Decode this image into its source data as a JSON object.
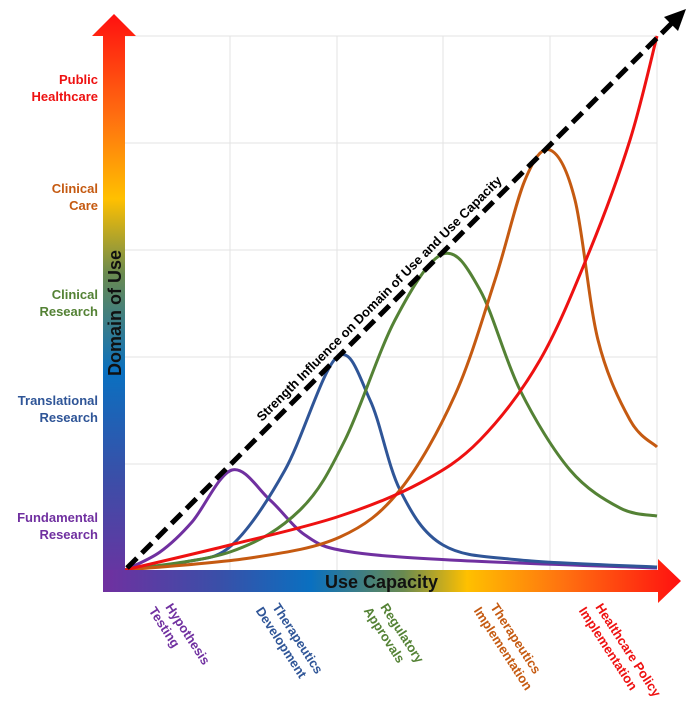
{
  "axes": {
    "y_title": "Domain of Use",
    "x_title": "Use Capacity"
  },
  "diagonal_label": "Strength Influence on Domain of Use and Use Capacity",
  "y_labels": [
    {
      "lines": [
        "Fundamental",
        "Research"
      ],
      "color": "#7030a0"
    },
    {
      "lines": [
        "Translational",
        "Research"
      ],
      "color": "#2f5597"
    },
    {
      "lines": [
        "Clinical",
        "Research"
      ],
      "color": "#548235"
    },
    {
      "lines": [
        "Clinical",
        "Care"
      ],
      "color": "#c55a11"
    },
    {
      "lines": [
        "Public",
        "Healthcare"
      ],
      "color": "#ee1111"
    }
  ],
  "x_labels": [
    {
      "lines": [
        "Hypothesis",
        "Testing"
      ],
      "color": "#7030a0"
    },
    {
      "lines": [
        "Therapeutics",
        "Development"
      ],
      "color": "#2f5597"
    },
    {
      "lines": [
        "Regulatory",
        "Approvals"
      ],
      "color": "#548235"
    },
    {
      "lines": [
        "Therapeutics",
        "Implementation"
      ],
      "color": "#c55a11"
    },
    {
      "lines": [
        "Healthcare Policy",
        "Implementation"
      ],
      "color": "#ee1111"
    }
  ],
  "curves": [
    {
      "stage": "Hypothesis Testing",
      "color": "#7030a0"
    },
    {
      "stage": "Therapeutics Development",
      "color": "#2f5597"
    },
    {
      "stage": "Regulatory Approvals",
      "color": "#548235"
    },
    {
      "stage": "Therapeutics Implementation",
      "color": "#c55a11"
    },
    {
      "stage": "Healthcare Policy Implementation",
      "color": "#ee1111"
    }
  ]
}
